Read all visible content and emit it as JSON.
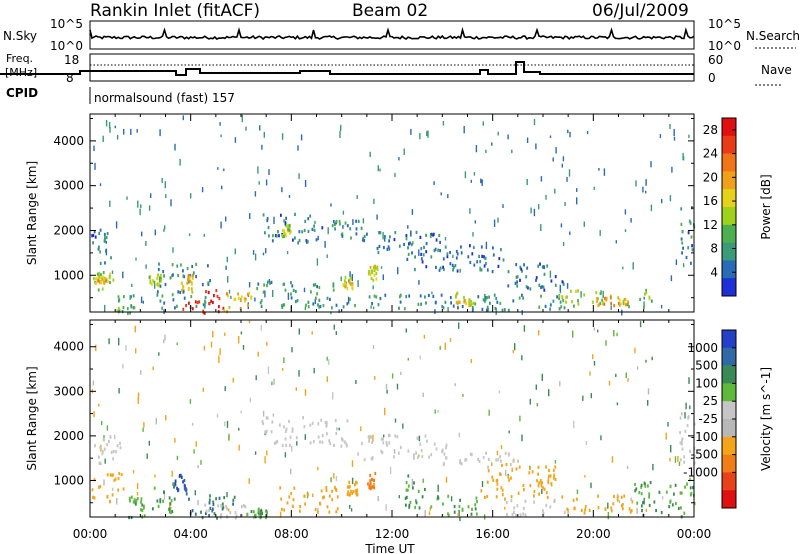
{
  "header": {
    "station": "Rankin Inlet (fitACF)",
    "beam": "Beam 02",
    "date": "06/Jul/2009"
  },
  "strip": {
    "nsky_label": "N.Sky",
    "nsky_ticks": [
      "10^5",
      "10^0"
    ],
    "nsearch_label": "N.Search",
    "nsearch_ticks": [
      "10^5",
      "10^0"
    ],
    "freq_label_top": "Freq.",
    "freq_label_unit": "[MHz]",
    "freq_ticks": [
      "18",
      "8"
    ],
    "nave_label": "Nave",
    "nave_ticks": [
      "60",
      "0"
    ],
    "cpid_label": "CPID",
    "cpid_text": "normalsound (fast) 157"
  },
  "colors": {
    "power_scale": [
      "#1f2fd8",
      "#2a6bb5",
      "#3a9b7a",
      "#4caf50",
      "#9ed21a",
      "#e6d21a",
      "#f0a01a",
      "#f07418",
      "#e83c16",
      "#e01010"
    ],
    "velocity_scale": [
      "#2440c8",
      "#2f6aa6",
      "#3a8a56",
      "#5db83c",
      "#c6c6c6",
      "#b8b8b8",
      "#f3a419",
      "#f07d18",
      "#e8421a",
      "#e01010"
    ]
  },
  "chart_data": [
    {
      "type": "heatmap",
      "title": "",
      "xlabel": "Time UT",
      "ylabel": "Slant Range [km]",
      "x_ticks": [
        "00:00",
        "04:00",
        "08:00",
        "12:00",
        "16:00",
        "20:00",
        "00:00"
      ],
      "y_ticks": [
        "1000",
        "2000",
        "3000",
        "4000"
      ],
      "xlim": [
        0,
        24
      ],
      "ylim": [
        180,
        4600
      ],
      "colorbar": {
        "label": "Power [dB]",
        "ticks": [
          "4",
          "8",
          "12",
          "16",
          "20",
          "24",
          "28"
        ],
        "range": [
          0,
          30
        ]
      },
      "regions": [
        {
          "t0": 0.0,
          "t1": 0.8,
          "r0": 1300,
          "r1": 2050,
          "value": 6
        },
        {
          "t0": 0.1,
          "t1": 0.9,
          "r0": 700,
          "r1": 1100,
          "value": 12
        },
        {
          "t0": 0.2,
          "t1": 0.7,
          "r0": 850,
          "r1": 1000,
          "value": 18
        },
        {
          "t0": 1.0,
          "t1": 1.8,
          "r0": 180,
          "r1": 600,
          "value": 10
        },
        {
          "t0": 2.3,
          "t1": 2.8,
          "r0": 800,
          "r1": 1050,
          "value": 14
        },
        {
          "t0": 2.6,
          "t1": 4.8,
          "r0": 300,
          "r1": 1300,
          "value": 7
        },
        {
          "t0": 3.6,
          "t1": 4.1,
          "r0": 650,
          "r1": 1050,
          "value": 18
        },
        {
          "t0": 3.6,
          "t1": 5.3,
          "r0": 180,
          "r1": 700,
          "value": 28
        },
        {
          "t0": 5.3,
          "t1": 6.5,
          "r0": 180,
          "r1": 700,
          "value": 18
        },
        {
          "t0": 6.8,
          "t1": 9.2,
          "r0": 1750,
          "r1": 2400,
          "value": 6
        },
        {
          "t0": 7.6,
          "t1": 8.0,
          "r0": 1900,
          "r1": 2150,
          "value": 14
        },
        {
          "t0": 6.5,
          "t1": 9.8,
          "r0": 300,
          "r1": 900,
          "value": 8
        },
        {
          "t0": 9.6,
          "t1": 10.8,
          "r0": 1850,
          "r1": 2250,
          "value": 8
        },
        {
          "t0": 10.0,
          "t1": 10.4,
          "r0": 700,
          "r1": 1000,
          "value": 15
        },
        {
          "t0": 10.5,
          "t1": 14.0,
          "r0": 1500,
          "r1": 2000,
          "value": 6
        },
        {
          "t0": 11.0,
          "t1": 11.4,
          "r0": 900,
          "r1": 1250,
          "value": 16
        },
        {
          "t0": 10.0,
          "t1": 19.0,
          "r0": 250,
          "r1": 600,
          "value": 7
        },
        {
          "t0": 12.5,
          "t1": 16.5,
          "r0": 1100,
          "r1": 1700,
          "value": 5
        },
        {
          "t0": 14.5,
          "t1": 15.2,
          "r0": 350,
          "r1": 650,
          "value": 16
        },
        {
          "t0": 16.5,
          "t1": 19.0,
          "r0": 700,
          "r1": 1300,
          "value": 5
        },
        {
          "t0": 18.6,
          "t1": 22.5,
          "r0": 300,
          "r1": 700,
          "value": 12
        },
        {
          "t0": 20.0,
          "t1": 21.4,
          "r0": 350,
          "r1": 550,
          "value": 20
        },
        {
          "t0": 23.4,
          "t1": 24.0,
          "r0": 1300,
          "r1": 2550,
          "value": 6
        }
      ]
    },
    {
      "type": "heatmap",
      "title": "",
      "xlabel": "Time UT",
      "ylabel": "Slant Range [km]",
      "x_ticks": [
        "00:00",
        "04:00",
        "08:00",
        "12:00",
        "16:00",
        "20:00",
        "00:00"
      ],
      "y_ticks": [
        "1000",
        "2000",
        "3000",
        "4000"
      ],
      "xlim": [
        0,
        24
      ],
      "ylim": [
        180,
        4600
      ],
      "colorbar": {
        "label": "Velocity [m s^-1]",
        "ticks": [
          "1000",
          "500",
          "100",
          "25",
          "-25",
          "-100",
          "-500",
          "-1000"
        ]
      },
      "regions": [
        {
          "t0": 0.0,
          "t1": 1.2,
          "r0": 1400,
          "r1": 2050,
          "value": 0
        },
        {
          "t0": 0.0,
          "t1": 1.3,
          "r0": 500,
          "r1": 1200,
          "value": -200
        },
        {
          "t0": 1.5,
          "t1": 2.2,
          "r0": 200,
          "r1": 700,
          "value": 50
        },
        {
          "t0": 2.4,
          "t1": 3.4,
          "r0": 300,
          "r1": 1000,
          "value": 60
        },
        {
          "t0": 3.3,
          "t1": 3.8,
          "r0": 800,
          "r1": 1150,
          "value": 700
        },
        {
          "t0": 3.8,
          "t1": 5.8,
          "r0": 180,
          "r1": 750,
          "value": 300
        },
        {
          "t0": 4.5,
          "t1": 6.2,
          "r0": 180,
          "r1": 500,
          "value": 0
        },
        {
          "t0": 6.2,
          "t1": 7.0,
          "r0": 200,
          "r1": 400,
          "value": 60
        },
        {
          "t0": 6.8,
          "t1": 10.2,
          "r0": 1800,
          "r1": 2450,
          "value": 0
        },
        {
          "t0": 7.5,
          "t1": 10.0,
          "r0": 300,
          "r1": 900,
          "value": -150
        },
        {
          "t0": 10.2,
          "t1": 10.6,
          "r0": 700,
          "r1": 1000,
          "value": -200
        },
        {
          "t0": 10.6,
          "t1": 14.2,
          "r0": 1500,
          "r1": 2050,
          "value": 0
        },
        {
          "t0": 11.0,
          "t1": 11.3,
          "r0": 850,
          "r1": 1200,
          "value": -400
        },
        {
          "t0": 12.5,
          "t1": 13.3,
          "r0": 400,
          "r1": 1150,
          "value": 60
        },
        {
          "t0": 14.0,
          "t1": 17.0,
          "r0": 1300,
          "r1": 1650,
          "value": 0
        },
        {
          "t0": 13.5,
          "t1": 15.5,
          "r0": 250,
          "r1": 700,
          "value": 60
        },
        {
          "t0": 15.5,
          "t1": 18.5,
          "r0": 600,
          "r1": 1400,
          "value": -200
        },
        {
          "t0": 16.5,
          "t1": 19.0,
          "r0": 250,
          "r1": 600,
          "value": 0
        },
        {
          "t0": 18.6,
          "t1": 21.6,
          "r0": 300,
          "r1": 700,
          "value": -150
        },
        {
          "t0": 21.6,
          "t1": 24.0,
          "r0": 200,
          "r1": 1000,
          "value": 60
        },
        {
          "t0": 23.4,
          "t1": 24.0,
          "r0": 1300,
          "r1": 2550,
          "value": 0
        }
      ]
    }
  ]
}
